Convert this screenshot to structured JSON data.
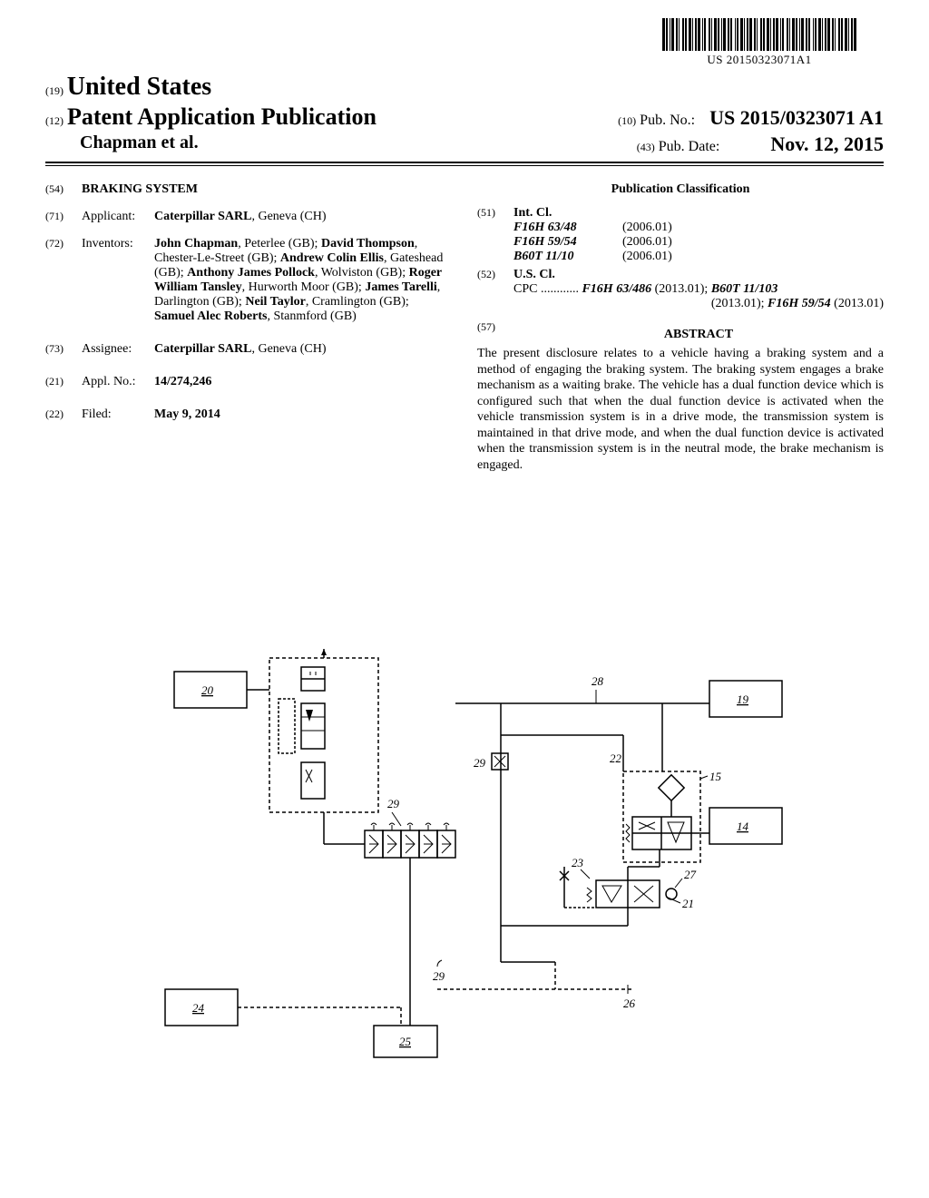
{
  "barcode_number": "US 20150323071A1",
  "header": {
    "country_code": "(19)",
    "country": "United States",
    "doc_type_code": "(12)",
    "doc_type": "Patent Application Publication",
    "authors": "Chapman et al.",
    "pubno_code": "(10)",
    "pubno_label": "Pub. No.:",
    "pubno": "US 2015/0323071 A1",
    "pubdate_code": "(43)",
    "pubdate_label": "Pub. Date:",
    "pubdate": "Nov. 12, 2015"
  },
  "left_col": {
    "title_code": "(54)",
    "title": "BRAKING SYSTEM",
    "applicant_code": "(71)",
    "applicant_label": "Applicant:",
    "applicant": "Caterpillar SARL",
    "applicant_loc": ", Geneva (CH)",
    "inventors_code": "(72)",
    "inventors_label": "Inventors:",
    "inventors_text": "John Chapman, Peterlee (GB); David Thompson, Chester-Le-Street (GB); Andrew Colin Ellis, Gateshead (GB); Anthony James Pollock, Wolviston (GB); Roger William Tansley, Hurworth Moor (GB); James Tarelli, Darlington (GB); Neil Taylor, Cramlington (GB); Samuel Alec Roberts, Stanmford (GB)",
    "assignee_code": "(73)",
    "assignee_label": "Assignee:",
    "assignee": "Caterpillar SARL",
    "assignee_loc": ", Geneva (CH)",
    "applno_code": "(21)",
    "applno_label": "Appl. No.:",
    "applno": "14/274,246",
    "filed_code": "(22)",
    "filed_label": "Filed:",
    "filed": "May 9, 2014"
  },
  "right_col": {
    "pc_title": "Publication Classification",
    "intcl_code": "(51)",
    "intcl_label": "Int. Cl.",
    "intcl": [
      {
        "name": "F16H 63/48",
        "year": "(2006.01)"
      },
      {
        "name": "F16H 59/54",
        "year": "(2006.01)"
      },
      {
        "name": "B60T 11/10",
        "year": "(2006.01)"
      }
    ],
    "uscl_code": "(52)",
    "uscl_label": "U.S. Cl.",
    "cpc_prefix": "CPC ............",
    "cpc_line1_a": "F16H 63/486",
    "cpc_line1_b": " (2013.01); ",
    "cpc_line1_c": "B60T 11/103",
    "cpc_line2_a": "(2013.01); ",
    "cpc_line2_b": "F16H 59/54",
    "cpc_line2_c": " (2013.01)",
    "abs_code": "(57)",
    "abs_title": "ABSTRACT",
    "abstract": "The present disclosure relates to a vehicle having a braking system and a method of engaging the braking system. The braking system engages a brake mechanism as a waiting brake. The vehicle has a dual function device which is configured such that when the dual function device is activated when the vehicle transmission system is in a drive mode, the transmission system is maintained in that drive mode, and when the dual function device is activated when the transmission system is in the neutral mode, the brake mechanism is engaged."
  },
  "figure": {
    "stroke": "#000000",
    "stroke_width": 1.5,
    "dash": "4,3",
    "labels": [
      "20",
      "24",
      "25",
      "29",
      "29",
      "29",
      "28",
      "22",
      "19",
      "14",
      "15",
      "27",
      "21",
      "23",
      "26"
    ],
    "font_size": 13
  }
}
